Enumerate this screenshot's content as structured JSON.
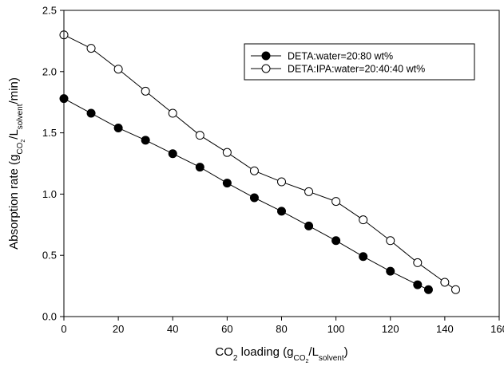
{
  "chart_data": {
    "type": "line",
    "xlabel": {
      "main": "CO",
      "sub2": "2",
      "mid": " loading (g",
      "subco": "CO",
      "subco2": "2",
      "slash": "/L",
      "subsolvent": "solvent",
      "close": ")"
    },
    "ylabel": {
      "main": "Absorption rate (g",
      "subco": "CO",
      "subco2": "2",
      "slash": "/L",
      "subsolvent": "solvent",
      "tail": "/min)"
    },
    "xlim": [
      0,
      160
    ],
    "ylim": [
      0,
      2.5
    ],
    "xticks": [
      "0",
      "20",
      "40",
      "60",
      "80",
      "100",
      "120",
      "140",
      "160"
    ],
    "yticks": [
      "0.0",
      "0.5",
      "1.0",
      "1.5",
      "2.0",
      "2.5"
    ],
    "grid": false,
    "legend_position": "top-right",
    "series": [
      {
        "name": "DETA:water=20:80 wt%",
        "marker": "filled-circle",
        "color": "#000000",
        "x": [
          0,
          10,
          20,
          30,
          40,
          50,
          60,
          70,
          80,
          90,
          100,
          110,
          120,
          130,
          134
        ],
        "y": [
          1.78,
          1.66,
          1.54,
          1.44,
          1.33,
          1.22,
          1.09,
          0.97,
          0.86,
          0.74,
          0.62,
          0.49,
          0.37,
          0.26,
          0.22
        ]
      },
      {
        "name": "DETA:IPA:water=20:40:40 wt%",
        "marker": "open-circle",
        "color": "#000000",
        "x": [
          0,
          10,
          20,
          30,
          40,
          50,
          60,
          70,
          80,
          90,
          100,
          110,
          120,
          130,
          140,
          144
        ],
        "y": [
          2.3,
          2.19,
          2.02,
          1.84,
          1.66,
          1.48,
          1.34,
          1.19,
          1.1,
          1.02,
          0.94,
          0.79,
          0.62,
          0.44,
          0.28,
          0.22
        ]
      }
    ]
  }
}
